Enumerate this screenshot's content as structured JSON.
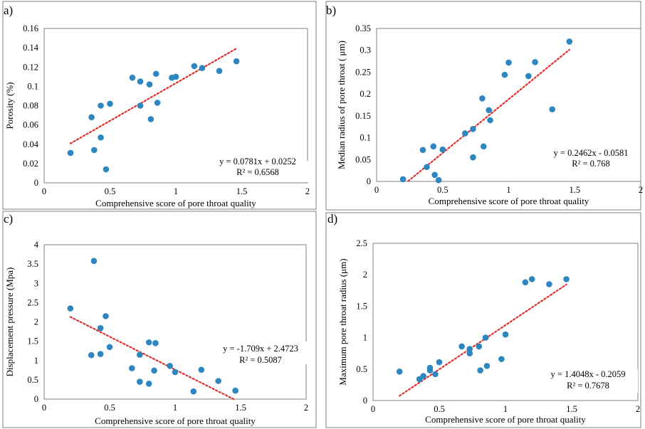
{
  "chart_data": [
    {
      "type": "scatter",
      "panel_label": "a)",
      "xlabel": "Comprehensive score of pore throat quality",
      "ylabel": "Porosity  (%)",
      "xlim": [
        0,
        2
      ],
      "ylim": [
        0,
        0.16
      ],
      "xticks": [
        0,
        0.5,
        1,
        1.5,
        2
      ],
      "yticks": [
        0,
        0.02,
        0.04,
        0.06,
        0.08,
        0.1,
        0.12,
        0.14,
        0.16
      ],
      "xtick_labels": [
        "0",
        "0.5",
        "1",
        "1.5",
        "2"
      ],
      "ytick_labels": [
        "0",
        "0.02",
        "0.04",
        "0.06",
        "0.08",
        "0.1",
        "0.12",
        "0.14",
        "0.16"
      ],
      "points": [
        [
          0.2,
          0.031
        ],
        [
          0.36,
          0.068
        ],
        [
          0.38,
          0.034
        ],
        [
          0.43,
          0.047
        ],
        [
          0.43,
          0.08
        ],
        [
          0.47,
          0.014
        ],
        [
          0.5,
          0.082
        ],
        [
          0.67,
          0.109
        ],
        [
          0.73,
          0.105
        ],
        [
          0.73,
          0.08
        ],
        [
          0.8,
          0.102
        ],
        [
          0.81,
          0.066
        ],
        [
          0.85,
          0.113
        ],
        [
          0.86,
          0.083
        ],
        [
          0.97,
          0.109
        ],
        [
          1.0,
          0.11
        ],
        [
          1.14,
          0.121
        ],
        [
          1.2,
          0.119
        ],
        [
          1.33,
          0.116
        ],
        [
          1.46,
          0.126
        ]
      ],
      "trendline": {
        "slope": 0.0781,
        "intercept": 0.0252,
        "x_range": [
          0.2,
          1.46
        ]
      },
      "equation": "y = 0.0781x + 0.0252",
      "r2": "R² = 0.6568"
    },
    {
      "type": "scatter",
      "panel_label": "b)",
      "xlabel": "Comprehensive score of pore throat quality",
      "ylabel": "Median radius of pore throat  (   μm)",
      "xlim": [
        0,
        2
      ],
      "ylim": [
        0,
        0.35
      ],
      "xticks": [
        0,
        0.5,
        1,
        1.5,
        2
      ],
      "yticks": [
        0,
        0.05,
        0.1,
        0.15,
        0.2,
        0.25,
        0.3,
        0.35
      ],
      "xtick_labels": [
        "0",
        "0.5",
        "1",
        "1.5",
        "2"
      ],
      "ytick_labels": [
        "0",
        "0.05",
        "0.1",
        "0.15",
        "0.2",
        "0.25",
        "0.3",
        "0.35"
      ],
      "points": [
        [
          0.2,
          0.005
        ],
        [
          0.35,
          0.072
        ],
        [
          0.38,
          0.033
        ],
        [
          0.43,
          0.08
        ],
        [
          0.44,
          0.015
        ],
        [
          0.47,
          0.003
        ],
        [
          0.5,
          0.073
        ],
        [
          0.67,
          0.11
        ],
        [
          0.73,
          0.12
        ],
        [
          0.73,
          0.055
        ],
        [
          0.8,
          0.19
        ],
        [
          0.81,
          0.08
        ],
        [
          0.85,
          0.163
        ],
        [
          0.86,
          0.14
        ],
        [
          0.97,
          0.244
        ],
        [
          1.0,
          0.272
        ],
        [
          1.15,
          0.241
        ],
        [
          1.2,
          0.273
        ],
        [
          1.33,
          0.165
        ],
        [
          1.46,
          0.32
        ]
      ],
      "trendline": {
        "slope": 0.2462,
        "intercept": -0.0581,
        "x_range": [
          0.24,
          1.46
        ]
      },
      "equation": "y = 0.2462x - 0.0581",
      "r2": "R² = 0.768"
    },
    {
      "type": "scatter",
      "panel_label": "c)",
      "xlabel": "Comprehensive score of pore throat quality",
      "ylabel": "Displacement pressure  (Mpa)",
      "xlim": [
        0,
        2
      ],
      "ylim": [
        0,
        4
      ],
      "xticks": [
        0,
        0.5,
        1,
        1.5,
        2
      ],
      "yticks": [
        0,
        0.5,
        1,
        1.5,
        2,
        2.5,
        3,
        3.5,
        4
      ],
      "xtick_labels": [
        "0",
        "0.5",
        "1",
        "1.5",
        "2"
      ],
      "ytick_labels": [
        "0",
        "0.5",
        "1",
        "1.5",
        "2",
        "2.5",
        "3",
        "3.5",
        "4"
      ],
      "points": [
        [
          0.2,
          2.35
        ],
        [
          0.36,
          1.14
        ],
        [
          0.38,
          3.58
        ],
        [
          0.43,
          1.84
        ],
        [
          0.43,
          1.17
        ],
        [
          0.47,
          2.15
        ],
        [
          0.5,
          1.35
        ],
        [
          0.67,
          0.8
        ],
        [
          0.73,
          1.15
        ],
        [
          0.73,
          0.45
        ],
        [
          0.8,
          0.4
        ],
        [
          0.8,
          1.47
        ],
        [
          0.84,
          0.74
        ],
        [
          0.85,
          1.45
        ],
        [
          0.96,
          0.86
        ],
        [
          1.0,
          0.7
        ],
        [
          1.14,
          0.2
        ],
        [
          1.2,
          0.76
        ],
        [
          1.33,
          0.47
        ],
        [
          1.46,
          0.22
        ]
      ],
      "trendline": {
        "slope": -1.709,
        "intercept": 2.4723,
        "x_range": [
          0.2,
          1.45
        ]
      },
      "equation": "y = -1.709x + 2.4723",
      "r2": "R² = 0.5087"
    },
    {
      "type": "scatter",
      "panel_label": "d)",
      "xlabel": "Comprehensive score of pore throat quality",
      "ylabel": "Maximum pore throat radius    (μm)",
      "xlim": [
        0,
        2
      ],
      "ylim": [
        0,
        2.5
      ],
      "xticks": [
        0,
        0.5,
        1,
        1.5,
        2
      ],
      "yticks": [
        0,
        0.5,
        1,
        1.5,
        2,
        2.5
      ],
      "xtick_labels": [
        "0",
        "0.5",
        "1",
        "1.5",
        "2"
      ],
      "ytick_labels": [
        "0",
        "0.5",
        "1",
        "1.5",
        "2",
        "2.5"
      ],
      "points": [
        [
          0.2,
          0.46
        ],
        [
          0.35,
          0.34
        ],
        [
          0.38,
          0.39
        ],
        [
          0.43,
          0.48
        ],
        [
          0.43,
          0.52
        ],
        [
          0.47,
          0.42
        ],
        [
          0.5,
          0.61
        ],
        [
          0.67,
          0.86
        ],
        [
          0.73,
          0.82
        ],
        [
          0.73,
          0.75
        ],
        [
          0.8,
          0.86
        ],
        [
          0.81,
          0.48
        ],
        [
          0.85,
          1.0
        ],
        [
          0.86,
          0.55
        ],
        [
          0.97,
          0.66
        ],
        [
          1.0,
          1.05
        ],
        [
          1.15,
          1.88
        ],
        [
          1.2,
          1.93
        ],
        [
          1.33,
          1.85
        ],
        [
          1.46,
          1.93
        ]
      ],
      "trendline": {
        "slope": 1.4048,
        "intercept": -0.2059,
        "x_range": [
          0.2,
          1.46
        ]
      },
      "equation": "y = 1.4048x - 0.2059",
      "r2": "R² = 0.7678"
    }
  ],
  "colors": {
    "point": "#2e86c1",
    "trendline": "#e0302a",
    "axis": "#808080",
    "frame": "#7f7f7f"
  }
}
